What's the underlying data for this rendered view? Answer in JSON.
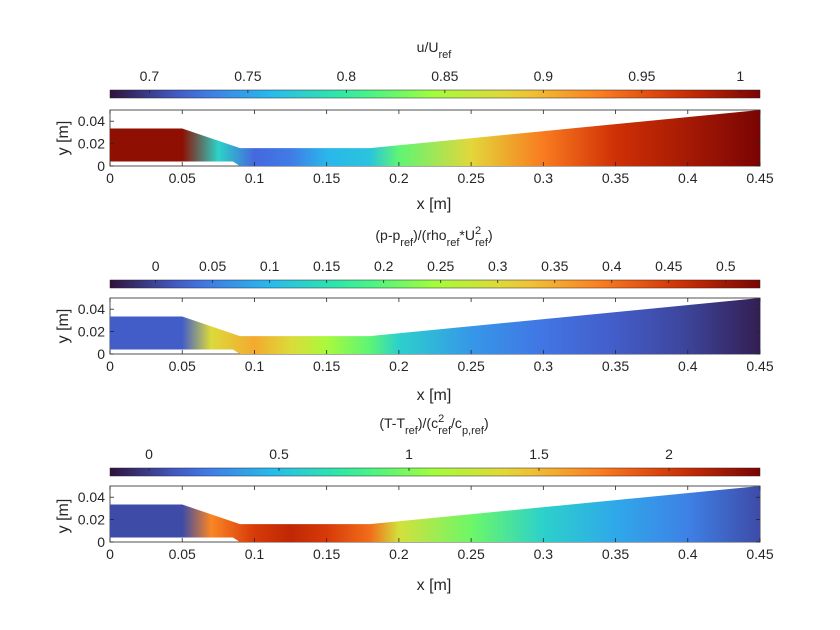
{
  "chart_data": [
    {
      "type": "heatmap",
      "title": "u/U_ref",
      "title_parts": {
        "main": "u/U",
        "sub": "ref"
      },
      "colormap": "turbo",
      "colorbar": {
        "limits": [
          0.68,
          1.01
        ],
        "ticks": [
          0.7,
          0.75,
          0.8,
          0.85,
          0.9,
          0.95,
          1
        ],
        "tick_labels": [
          "0.7",
          "0.75",
          "0.8",
          "0.85",
          "0.9",
          "0.95",
          "1"
        ],
        "placement": "top"
      },
      "xlabel": "x [m]",
      "ylabel": "y [m]",
      "xlim": [
        0,
        0.45
      ],
      "ylim": [
        0,
        0.05
      ],
      "xticks": [
        0,
        0.05,
        0.1,
        0.15,
        0.2,
        0.25,
        0.3,
        0.35,
        0.4,
        0.45
      ],
      "xtick_labels": [
        "0",
        "0.05",
        "0.1",
        "0.15",
        "0.2",
        "0.25",
        "0.3",
        "0.35",
        "0.4",
        "0.45"
      ],
      "yticks": [
        0,
        0.02,
        0.04
      ],
      "ytick_labels": [
        "0",
        "0.02",
        "0.04"
      ],
      "stops": [
        {
          "x": 0,
          "v": 1.0
        },
        {
          "x": 0.05,
          "v": 1.0
        },
        {
          "x": 0.075,
          "v": 0.78
        },
        {
          "x": 0.1,
          "v": 0.72
        },
        {
          "x": 0.125,
          "v": 0.73
        },
        {
          "x": 0.15,
          "v": 0.76
        },
        {
          "x": 0.18,
          "v": 0.77
        },
        {
          "x": 0.2,
          "v": 0.82
        },
        {
          "x": 0.25,
          "v": 0.88
        },
        {
          "x": 0.3,
          "v": 0.93
        },
        {
          "x": 0.35,
          "v": 0.97
        },
        {
          "x": 0.4,
          "v": 0.99
        },
        {
          "x": 0.45,
          "v": 1.01
        }
      ]
    },
    {
      "type": "heatmap",
      "title": "(p-p_ref)/(rho_ref*U_ref^2)",
      "title_parts": {
        "pre": "(p-p",
        "sub1": "ref",
        "mid": ")/(rho",
        "sub2": "ref",
        "mid2": "*U",
        "sup": "2",
        "sub3": "ref",
        "post": ")"
      },
      "colormap": "turbo",
      "colorbar": {
        "limits": [
          -0.04,
          0.53
        ],
        "ticks": [
          0,
          0.05,
          0.1,
          0.15,
          0.2,
          0.25,
          0.3,
          0.35,
          0.4,
          0.45,
          0.5
        ],
        "tick_labels": [
          "0",
          "0.05",
          "0.1",
          "0.15",
          "0.2",
          "0.25",
          "0.3",
          "0.35",
          "0.4",
          "0.45",
          "0.5"
        ],
        "placement": "top"
      },
      "xlabel": "x [m]",
      "ylabel": "y [m]",
      "xlim": [
        0,
        0.45
      ],
      "ylim": [
        0,
        0.05
      ],
      "xticks": [
        0,
        0.05,
        0.1,
        0.15,
        0.2,
        0.25,
        0.3,
        0.35,
        0.4,
        0.45
      ],
      "xtick_labels": [
        "0",
        "0.05",
        "0.1",
        "0.15",
        "0.2",
        "0.25",
        "0.3",
        "0.35",
        "0.4",
        "0.45"
      ],
      "yticks": [
        0,
        0.02,
        0.04
      ],
      "ytick_labels": [
        "0",
        "0.02",
        "0.04"
      ],
      "stops": [
        {
          "x": 0,
          "v": 0.02
        },
        {
          "x": 0.05,
          "v": 0.02
        },
        {
          "x": 0.07,
          "v": 0.3
        },
        {
          "x": 0.1,
          "v": 0.35
        },
        {
          "x": 0.125,
          "v": 0.3
        },
        {
          "x": 0.15,
          "v": 0.25
        },
        {
          "x": 0.18,
          "v": 0.2
        },
        {
          "x": 0.2,
          "v": 0.13
        },
        {
          "x": 0.25,
          "v": 0.07
        },
        {
          "x": 0.3,
          "v": 0.04
        },
        {
          "x": 0.35,
          "v": 0.02
        },
        {
          "x": 0.4,
          "v": 0.0
        },
        {
          "x": 0.45,
          "v": -0.03
        }
      ]
    },
    {
      "type": "heatmap",
      "title": "(T-T_ref)/(c_ref^2/c_p,ref)",
      "title_parts": {
        "pre": "(T-T",
        "sub1": "ref",
        "mid": ")/(c",
        "sup": "2",
        "sub2": "ref",
        "mid2": "/c",
        "sub3": "p,ref",
        "post": ")"
      },
      "colormap": "turbo",
      "colorbar": {
        "limits": [
          -0.15,
          2.35
        ],
        "ticks": [
          0,
          0.5,
          1,
          1.5,
          2
        ],
        "tick_labels": [
          "0",
          "0.5",
          "1",
          "1.5",
          "2"
        ],
        "placement": "top"
      },
      "xlabel": "x [m]",
      "ylabel": "y [m]",
      "xlim": [
        0,
        0.45
      ],
      "ylim": [
        0,
        0.05
      ],
      "xticks": [
        0,
        0.05,
        0.1,
        0.15,
        0.2,
        0.25,
        0.3,
        0.35,
        0.4,
        0.45
      ],
      "xtick_labels": [
        "0",
        "0.05",
        "0.1",
        "0.15",
        "0.2",
        "0.25",
        "0.3",
        "0.35",
        "0.4",
        "0.45"
      ],
      "yticks": [
        0,
        0.02,
        0.04
      ],
      "ytick_labels": [
        "0",
        "0.02",
        "0.04"
      ],
      "stops": [
        {
          "x": 0,
          "v": 0.05
        },
        {
          "x": 0.05,
          "v": 0.05
        },
        {
          "x": 0.07,
          "v": 1.7
        },
        {
          "x": 0.1,
          "v": 2.0
        },
        {
          "x": 0.125,
          "v": 2.1
        },
        {
          "x": 0.15,
          "v": 2.0
        },
        {
          "x": 0.18,
          "v": 1.8
        },
        {
          "x": 0.2,
          "v": 1.3
        },
        {
          "x": 0.25,
          "v": 0.95
        },
        {
          "x": 0.3,
          "v": 0.6
        },
        {
          "x": 0.35,
          "v": 0.4
        },
        {
          "x": 0.4,
          "v": 0.25
        },
        {
          "x": 0.45,
          "v": 0.05
        }
      ]
    }
  ]
}
